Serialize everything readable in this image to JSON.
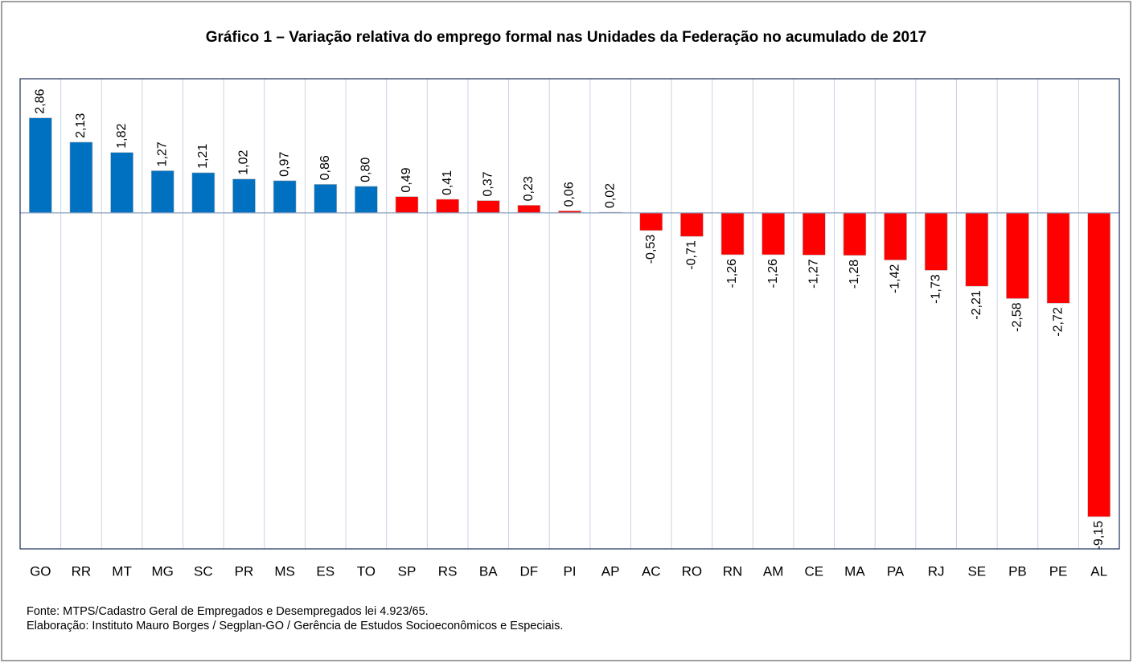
{
  "chart_data": {
    "type": "bar",
    "title": "Gráfico 1 – Variação relativa do emprego formal nas Unidades da Federação no acumulado de 2017",
    "categories": [
      "GO",
      "RR",
      "MT",
      "MG",
      "SC",
      "PR",
      "MS",
      "ES",
      "TO",
      "SP",
      "RS",
      "BA",
      "DF",
      "PI",
      "AP",
      "AC",
      "RO",
      "RN",
      "AM",
      "CE",
      "MA",
      "PA",
      "RJ",
      "SE",
      "PB",
      "PE",
      "AL"
    ],
    "values": [
      2.86,
      2.13,
      1.82,
      1.27,
      1.21,
      1.02,
      0.97,
      0.86,
      0.8,
      0.49,
      0.41,
      0.37,
      0.23,
      0.06,
      0.02,
      -0.53,
      -0.71,
      -1.26,
      -1.26,
      -1.27,
      -1.28,
      -1.42,
      -1.73,
      -2.21,
      -2.58,
      -2.72,
      -9.15
    ],
    "value_labels": [
      "2,86",
      "2,13",
      "1,82",
      "1,27",
      "1,21",
      "1,02",
      "0,97",
      "0,86",
      "0,80",
      "0,49",
      "0,41",
      "0,37",
      "0,23",
      "0,06",
      "0,02",
      "-0,53",
      "-0,71",
      "-1,26",
      "-1,26",
      "-1,27",
      "-1,28",
      "-1,42",
      "-1,73",
      "-2,21",
      "-2,58",
      "-2,72",
      "-9,15"
    ],
    "colors": [
      "#0070c0",
      "#0070c0",
      "#0070c0",
      "#0070c0",
      "#0070c0",
      "#0070c0",
      "#0070c0",
      "#0070c0",
      "#0070c0",
      "#ff0000",
      "#ff0000",
      "#ff0000",
      "#ff0000",
      "#ff0000",
      "#ff0000",
      "#ff0000",
      "#ff0000",
      "#ff0000",
      "#ff0000",
      "#ff0000",
      "#ff0000",
      "#ff0000",
      "#ff0000",
      "#ff0000",
      "#ff0000",
      "#ff0000",
      "#ff0000"
    ],
    "ylim": [
      -10.12,
      4.04
    ],
    "source": "Fonte: MTPS/Cadastro Geral de Empregados e Desempregados lei 4.923/65.",
    "credit": "Elaboração: Instituto Mauro Borges / Segplan-GO / Gerência de Estudos Socioeconômicos e Especiais."
  }
}
